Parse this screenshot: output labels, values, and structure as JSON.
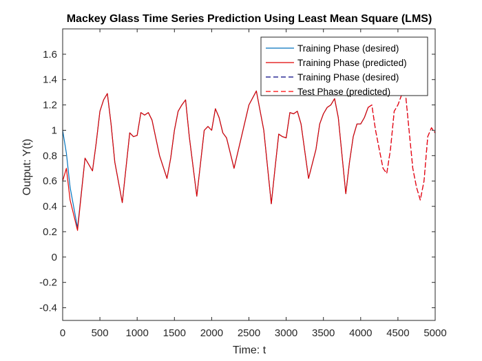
{
  "chart_data": {
    "type": "line",
    "title": "Mackey Glass Time Series Prediction Using Least Mean Square (LMS)",
    "xlabel": "Time: t",
    "ylabel": "Output: Y(t)",
    "xlim": [
      0,
      5000
    ],
    "ylim": [
      -0.5,
      1.8
    ],
    "xticks": [
      0,
      500,
      1000,
      1500,
      2000,
      2500,
      3000,
      3500,
      4000,
      4500,
      5000
    ],
    "yticks": [
      -0.4,
      -0.2,
      0,
      0.2,
      0.4,
      0.6,
      0.8,
      1,
      1.2,
      1.4,
      1.6
    ],
    "ytick_labels": [
      "-0.4",
      "-0.2",
      "0",
      "0.2",
      "0.4",
      "0.6",
      "0.8",
      "1",
      "1.2",
      "1.4",
      "1.6"
    ],
    "grid": false,
    "legend_position": "top-right",
    "colors": {
      "blue": "#0072BD",
      "red": "#E00000",
      "navy": "#000080",
      "dashed_red": "#FF0000"
    },
    "series": [
      {
        "name": "Training Phase (desired)",
        "style": "solid",
        "color": "#0072BD",
        "x": [
          0,
          50,
          100,
          200,
          300,
          400,
          450,
          500,
          550,
          600,
          650,
          700,
          800,
          900,
          950,
          1000,
          1050,
          1100,
          1150,
          1200,
          1300,
          1400,
          1450,
          1500,
          1550,
          1600,
          1650,
          1700,
          1800,
          1900,
          1950,
          2000,
          2050,
          2100,
          2150,
          2200,
          2300,
          2400,
          2500,
          2600,
          2700,
          2800,
          2850,
          2900,
          2950,
          3000,
          3050,
          3100,
          3150,
          3200,
          3300,
          3400,
          3450,
          3500,
          3550,
          3600,
          3650,
          3700,
          3800,
          3850,
          3900,
          3950,
          4000,
          4050,
          4100
        ],
        "y": [
          1.0,
          0.82,
          0.55,
          0.23,
          0.78,
          0.68,
          0.9,
          1.15,
          1.24,
          1.29,
          1.05,
          0.75,
          0.43,
          0.98,
          0.95,
          0.96,
          1.14,
          1.12,
          1.14,
          1.08,
          0.8,
          0.62,
          0.78,
          1.0,
          1.15,
          1.2,
          1.24,
          0.95,
          0.48,
          1.0,
          1.03,
          1.0,
          1.17,
          1.1,
          0.98,
          0.94,
          0.7,
          0.95,
          1.2,
          1.31,
          1.0,
          0.42,
          0.7,
          0.97,
          0.95,
          0.94,
          1.14,
          1.13,
          1.15,
          1.05,
          0.62,
          0.85,
          1.05,
          1.13,
          1.18,
          1.2,
          1.25,
          1.1,
          0.5,
          0.75,
          0.95,
          1.05,
          1.05,
          1.1,
          1.18
        ]
      },
      {
        "name": "Training Phase (predicted)",
        "style": "solid",
        "color": "#E00000",
        "x": [
          0,
          50,
          100,
          200,
          300,
          400,
          450,
          500,
          550,
          600,
          650,
          700,
          800,
          900,
          950,
          1000,
          1050,
          1100,
          1150,
          1200,
          1300,
          1400,
          1450,
          1500,
          1550,
          1600,
          1650,
          1700,
          1800,
          1900,
          1950,
          2000,
          2050,
          2100,
          2150,
          2200,
          2300,
          2400,
          2500,
          2600,
          2700,
          2800,
          2850,
          2900,
          2950,
          3000,
          3050,
          3100,
          3150,
          3200,
          3300,
          3400,
          3450,
          3500,
          3550,
          3600,
          3650,
          3700,
          3800,
          3850,
          3900,
          3950,
          4000,
          4050,
          4100
        ],
        "y": [
          0.6,
          0.7,
          0.45,
          0.21,
          0.78,
          0.68,
          0.9,
          1.15,
          1.24,
          1.29,
          1.05,
          0.75,
          0.43,
          0.98,
          0.95,
          0.96,
          1.14,
          1.12,
          1.14,
          1.08,
          0.8,
          0.62,
          0.78,
          1.0,
          1.15,
          1.2,
          1.24,
          0.95,
          0.48,
          1.0,
          1.03,
          1.0,
          1.17,
          1.1,
          0.98,
          0.94,
          0.7,
          0.95,
          1.2,
          1.31,
          1.0,
          0.42,
          0.7,
          0.97,
          0.95,
          0.94,
          1.14,
          1.13,
          1.15,
          1.05,
          0.62,
          0.85,
          1.05,
          1.13,
          1.18,
          1.2,
          1.25,
          1.1,
          0.5,
          0.75,
          0.95,
          1.05,
          1.05,
          1.1,
          1.18
        ]
      },
      {
        "name": "Training Phase (desired)",
        "style": "dashed",
        "color": "#000080",
        "x": [
          4100,
          4150,
          4200,
          4250,
          4300,
          4350,
          4400,
          4450,
          4500,
          4550,
          4600,
          4650,
          4700,
          4750,
          4800,
          4850,
          4900,
          4950,
          5000
        ],
        "y": [
          1.18,
          1.2,
          1.0,
          0.85,
          0.7,
          0.66,
          0.85,
          1.15,
          1.2,
          1.28,
          1.3,
          1.0,
          0.7,
          0.55,
          0.45,
          0.6,
          0.95,
          1.02,
          0.98
        ]
      },
      {
        "name": "Test Phase (predicted)",
        "style": "dashed",
        "color": "#FF0000",
        "x": [
          4100,
          4150,
          4200,
          4250,
          4300,
          4350,
          4400,
          4450,
          4500,
          4550,
          4600,
          4650,
          4700,
          4750,
          4800,
          4850,
          4900,
          4950,
          5000
        ],
        "y": [
          1.18,
          1.2,
          1.0,
          0.85,
          0.7,
          0.66,
          0.85,
          1.15,
          1.2,
          1.28,
          1.3,
          1.0,
          0.7,
          0.55,
          0.45,
          0.6,
          0.95,
          1.02,
          0.98
        ]
      }
    ]
  }
}
